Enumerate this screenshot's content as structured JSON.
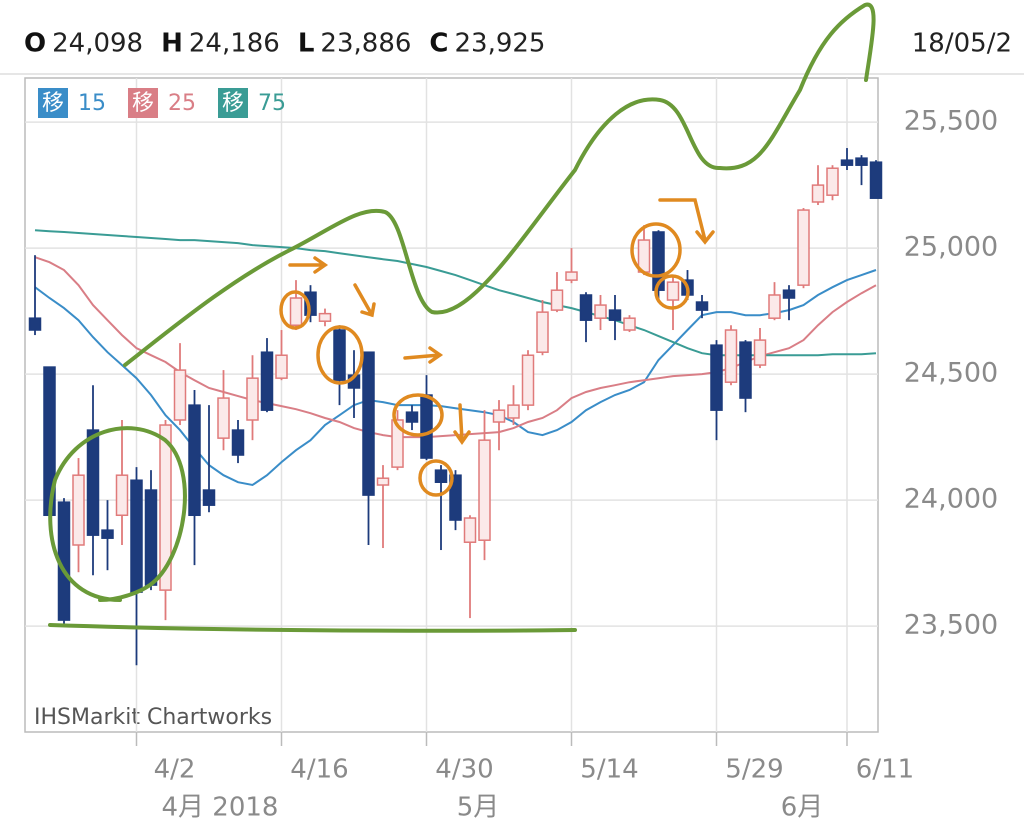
{
  "header": {
    "items": [
      {
        "key": "O",
        "value": "24,098"
      },
      {
        "key": "H",
        "value": "24,186"
      },
      {
        "key": "L",
        "value": "23,886"
      },
      {
        "key": "C",
        "value": "23,925"
      }
    ],
    "date": "18/05/2"
  },
  "chart_data": {
    "type": "candlestick",
    "categories": [
      null,
      null,
      null,
      null,
      null,
      null,
      null,
      "4/2",
      null,
      null,
      null,
      null,
      null,
      null,
      null,
      null,
      null,
      "4/16",
      null,
      null,
      null,
      null,
      null,
      null,
      null,
      null,
      null,
      "4/30",
      null,
      null,
      null,
      null,
      null,
      null,
      null,
      null,
      null,
      "5/14",
      null,
      null,
      null,
      null,
      null,
      null,
      null,
      null,
      null,
      "5/29",
      null,
      null,
      null,
      null,
      null,
      null,
      null,
      null,
      "6/11",
      null,
      null
    ],
    "month_labels": [
      "4月 2018",
      "5月",
      "6月"
    ],
    "open": [
      24722,
      24528,
      23992,
      23822,
      24278,
      23881,
      23940,
      24079,
      24040,
      23643,
      24318,
      24377,
      24040,
      24246,
      24278,
      24318,
      24587,
      24484,
      24694,
      24825,
      24710,
      24675,
      24496,
      24587,
      24060,
      24131,
      24349,
      24417,
      24119,
      24099,
      23833,
      23841,
      24310,
      24326,
      24377,
      24587,
      24754,
      24873,
      24814,
      24722,
      24754,
      24675,
      24905,
      25064,
      24794,
      24873,
      24786,
      24615,
      24468,
      24627,
      24536,
      24722,
      24833,
      24853,
      25183,
      25210,
      25349,
      25357,
      25341
    ],
    "high": [
      24972,
      24528,
      24008,
      24167,
      24456,
      24000,
      24318,
      24131,
      24119,
      24318,
      24623,
      24437,
      24377,
      24516,
      24318,
      24575,
      24643,
      24675,
      24873,
      24853,
      24760,
      24694,
      24595,
      24587,
      24139,
      24357,
      24377,
      24496,
      24139,
      24119,
      23940,
      24357,
      24397,
      24456,
      24595,
      24794,
      24905,
      25000,
      24825,
      24814,
      24814,
      24734,
      25091,
      25071,
      24893,
      24913,
      24814,
      24635,
      24694,
      24635,
      24683,
      24865,
      24853,
      25159,
      25329,
      25329,
      25397,
      25369,
      25349
    ],
    "low": [
      24655,
      23929,
      23504,
      23714,
      23702,
      23722,
      23822,
      23345,
      23643,
      23524,
      24298,
      23742,
      23952,
      24198,
      24147,
      24238,
      24349,
      24476,
      24675,
      24706,
      24690,
      24377,
      24326,
      23822,
      23810,
      24119,
      24278,
      24159,
      23802,
      23881,
      23532,
      23762,
      24198,
      24298,
      24357,
      24575,
      24746,
      24861,
      24627,
      24675,
      24635,
      24667,
      24893,
      24794,
      24675,
      24794,
      24722,
      24238,
      24456,
      24349,
      24524,
      24714,
      24714,
      24841,
      25171,
      25190,
      25310,
      25250,
      25198
    ],
    "close": [
      24675,
      23940,
      23524,
      24099,
      23861,
      23849,
      24099,
      23635,
      23663,
      24298,
      24516,
      23940,
      23980,
      24405,
      24179,
      24484,
      24357,
      24575,
      24802,
      24734,
      24740,
      24476,
      24445,
      24020,
      24087,
      24318,
      24310,
      24167,
      24071,
      23921,
      23929,
      24238,
      24357,
      24377,
      24575,
      24746,
      24833,
      24905,
      24714,
      24774,
      24714,
      24722,
      25032,
      24833,
      24865,
      24814,
      24754,
      24357,
      24675,
      24405,
      24635,
      24814,
      24802,
      25151,
      25250,
      25317,
      25329,
      25329,
      25198
    ],
    "up_color": "#e07a7a",
    "down_color": "#1d3b7c",
    "ma_badge": "移",
    "series": [
      {
        "name": "15",
        "color": "#3a8dc8",
        "values": [
          24845,
          24802,
          24762,
          24714,
          24647,
          24587,
          24536,
          24484,
          24417,
          24337,
          24278,
          24206,
          24139,
          24099,
          24071,
          24060,
          24099,
          24151,
          24198,
          24238,
          24298,
          24337,
          24377,
          24397,
          24389,
          24377,
          24377,
          24377,
          24373,
          24365,
          24357,
          24349,
          24337,
          24310,
          24270,
          24258,
          24278,
          24310,
          24357,
          24389,
          24417,
          24437,
          24468,
          24556,
          24615,
          24675,
          24734,
          24746,
          24746,
          24734,
          24734,
          24742,
          24754,
          24774,
          24814,
          24845,
          24873,
          24893,
          24913
        ]
      },
      {
        "name": "25",
        "color": "#d97e86",
        "values": [
          24964,
          24944,
          24913,
          24853,
          24774,
          24714,
          24655,
          24603,
          24575,
          24548,
          24508,
          24476,
          24445,
          24429,
          24413,
          24397,
          24385,
          24373,
          24361,
          24345,
          24326,
          24310,
          24286,
          24270,
          24258,
          24250,
          24250,
          24250,
          24254,
          24258,
          24262,
          24266,
          24270,
          24286,
          24310,
          24326,
          24357,
          24405,
          24429,
          24445,
          24456,
          24468,
          24476,
          24484,
          24492,
          24496,
          24500,
          24508,
          24524,
          24548,
          24571,
          24587,
          24603,
          24635,
          24694,
          24746,
          24786,
          24821,
          24853
        ]
      },
      {
        "name": "75",
        "color": "#3a9c95",
        "values": [
          25071,
          25067,
          25064,
          25060,
          25056,
          25052,
          25048,
          25044,
          25040,
          25036,
          25032,
          25032,
          25028,
          25024,
          25020,
          25012,
          25008,
          25004,
          25000,
          24992,
          24988,
          24980,
          24972,
          24964,
          24956,
          24949,
          24937,
          24925,
          24909,
          24893,
          24873,
          24853,
          24833,
          24818,
          24802,
          24786,
          24774,
          24762,
          24746,
          24730,
          24714,
          24694,
          24675,
          24651,
          24627,
          24603,
          24583,
          24575,
          24575,
          24575,
          24575,
          24575,
          24575,
          24575,
          24575,
          24579,
          24579,
          24579,
          24583
        ]
      }
    ],
    "ylim": [
      23080,
      25675
    ],
    "yticks": [
      {
        "value": 23500,
        "label": "23,500"
      },
      {
        "value": 24000,
        "label": "24,000"
      },
      {
        "value": 24500,
        "label": "24,500"
      },
      {
        "value": 25000,
        "label": "25,000"
      },
      {
        "value": 25500,
        "label": "25,500"
      }
    ],
    "grid": true,
    "credit": "IHSMarkit Chartworks"
  }
}
